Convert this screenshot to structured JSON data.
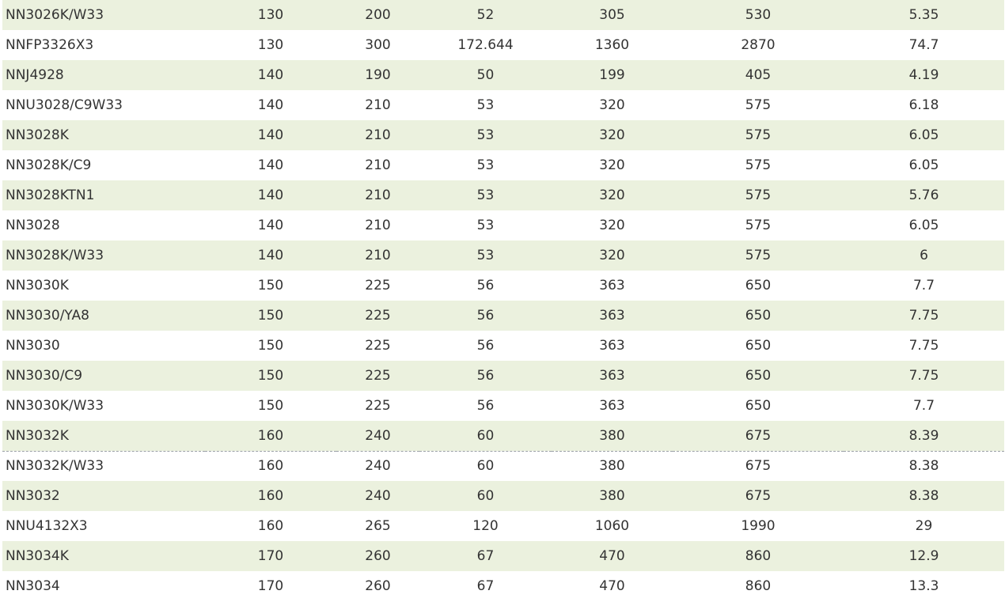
{
  "table": {
    "rows": [
      [
        "NN3026K/W33",
        "130",
        "200",
        "52",
        "305",
        "530",
        "5.35"
      ],
      [
        "NNFP3326X3",
        "130",
        "300",
        "172.644",
        "1360",
        "2870",
        "74.7"
      ],
      [
        "NNJ4928",
        "140",
        "190",
        "50",
        "199",
        "405",
        "4.19"
      ],
      [
        "NNU3028/C9W33",
        "140",
        "210",
        "53",
        "320",
        "575",
        "6.18"
      ],
      [
        "NN3028K",
        "140",
        "210",
        "53",
        "320",
        "575",
        "6.05"
      ],
      [
        "NN3028K/C9",
        "140",
        "210",
        "53",
        "320",
        "575",
        "6.05"
      ],
      [
        "NN3028KTN1",
        "140",
        "210",
        "53",
        "320",
        "575",
        "5.76"
      ],
      [
        "NN3028",
        "140",
        "210",
        "53",
        "320",
        "575",
        "6.05"
      ],
      [
        "NN3028K/W33",
        "140",
        "210",
        "53",
        "320",
        "575",
        "6"
      ],
      [
        "NN3030K",
        "150",
        "225",
        "56",
        "363",
        "650",
        "7.7"
      ],
      [
        "NN3030/YA8",
        "150",
        "225",
        "56",
        "363",
        "650",
        "7.75"
      ],
      [
        "NN3030",
        "150",
        "225",
        "56",
        "363",
        "650",
        "7.75"
      ],
      [
        "NN3030/C9",
        "150",
        "225",
        "56",
        "363",
        "650",
        "7.75"
      ],
      [
        "NN3030K/W33",
        "150",
        "225",
        "56",
        "363",
        "650",
        "7.7"
      ],
      [
        "NN3032K",
        "160",
        "240",
        "60",
        "380",
        "675",
        "8.39"
      ],
      [
        "NN3032K/W33",
        "160",
        "240",
        "60",
        "380",
        "675",
        "8.38"
      ],
      [
        "NN3032",
        "160",
        "240",
        "60",
        "380",
        "675",
        "8.38"
      ],
      [
        "NNU4132X3",
        "160",
        "265",
        "120",
        "1060",
        "1990",
        "29"
      ],
      [
        "NN3034K",
        "170",
        "260",
        "67",
        "470",
        "860",
        "12.9"
      ],
      [
        "NN3034",
        "170",
        "260",
        "67",
        "470",
        "860",
        "13.3"
      ]
    ]
  },
  "colors": {
    "stripe": "#ebf1de",
    "text": "#333333",
    "divider": "#9aa0a6"
  }
}
